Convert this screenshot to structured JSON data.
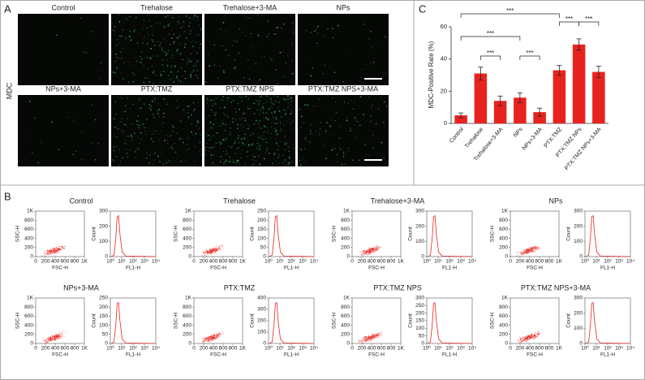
{
  "panel_labels": [
    "A",
    "B",
    "C"
  ],
  "panel_a": {
    "y_label": "MDC",
    "images": [
      "Control",
      "Trehalose",
      "Trehalose+3-MA",
      "NPs",
      "NPs+3-MA",
      "PTX:TMZ",
      "PTX:TMZ NPS",
      "PTX:TMZ NPS+3-MA"
    ]
  },
  "panel_b": {
    "scatter": {
      "x_label": "FSC-H",
      "y_label": "SSC-H",
      "xlim": [
        0,
        1000
      ],
      "ylim": [
        0,
        1000
      ],
      "xticks": [
        0,
        200,
        400,
        600,
        800,
        {
          "value": 1000,
          "label": "1K"
        }
      ],
      "yticks": [
        0,
        200,
        400,
        600,
        800,
        {
          "value": 1000,
          "label": "1K"
        }
      ]
    },
    "histogram": {
      "x_label": "FL1-H",
      "y_label": "Count",
      "log_x": true,
      "xlim": [
        1,
        10000
      ],
      "xticks": [
        {
          "value": 1,
          "label": "10⁰"
        },
        {
          "value": 10,
          "label": "10¹"
        },
        {
          "value": 100,
          "label": "10²"
        },
        {
          "value": 1000,
          "label": "10³"
        },
        {
          "value": 10000,
          "label": "10⁴"
        }
      ]
    },
    "color": "#e8231f",
    "groups": [
      {
        "title": "Control",
        "ylim": [
          0,
          300
        ],
        "yticks": [
          0,
          100,
          200,
          300
        ]
      },
      {
        "title": "Trehalose",
        "ylim": [
          0,
          250
        ],
        "yticks": [
          0,
          50,
          100,
          150,
          200,
          250
        ]
      },
      {
        "title": "Trehalose+3-MA",
        "ylim": [
          0,
          300
        ],
        "yticks": [
          0,
          100,
          200,
          300
        ]
      },
      {
        "title": "NPs",
        "ylim": [
          0,
          300
        ],
        "yticks": [
          0,
          100,
          200,
          300
        ]
      },
      {
        "title": "NPs+3-MA",
        "ylim": [
          0,
          250
        ],
        "yticks": [
          0,
          50,
          100,
          150,
          200,
          250
        ]
      },
      {
        "title": "PTX:TMZ",
        "ylim": [
          0,
          400
        ],
        "yticks": [
          0,
          100,
          200,
          300,
          400
        ]
      },
      {
        "title": "PTX:TMZ NPS",
        "ylim": [
          0,
          300
        ],
        "yticks": [
          0,
          50,
          100,
          150,
          200,
          250,
          300
        ]
      },
      {
        "title": "PTX:TMZ NPS+3-MA",
        "ylim": [
          0,
          300
        ],
        "yticks": [
          0,
          100,
          200,
          300
        ]
      }
    ]
  },
  "chart_data": {
    "type": "bar",
    "y_label": "MDC-Positive Rate (%)",
    "categories": [
      "Control",
      "Trehalose",
      "Trehalose+3-MA",
      "NPs",
      "NPs+3-MA",
      "PTX:TMZ",
      "PTX:TMZ NPs",
      "PTX:TMZ NPs+3-MA"
    ],
    "values": [
      5,
      31,
      14,
      16,
      7,
      33,
      49,
      32
    ],
    "errors": [
      1.5,
      4,
      3,
      3,
      2.5,
      3,
      3.5,
      3.5
    ],
    "color": "#e8231f",
    "ylim": [
      0,
      60
    ],
    "yticks": [
      0,
      20,
      40,
      60
    ],
    "annotations": [
      {
        "text": "***",
        "from": "Control",
        "to": "PTX:TMZ"
      },
      {
        "text": "***",
        "from": "Control",
        "to": "NPs"
      },
      {
        "text": "***",
        "from": "Trehalose",
        "to": "Trehalose+3-MA"
      },
      {
        "text": "***",
        "from": "NPs",
        "to": "NPs+3-MA"
      },
      {
        "text": "***",
        "from": "PTX:TMZ",
        "to": "PTX:TMZ NPs"
      },
      {
        "text": "***",
        "from": "PTX:TMZ NPs",
        "to": "PTX:TMZ NPs+3-MA"
      }
    ]
  }
}
